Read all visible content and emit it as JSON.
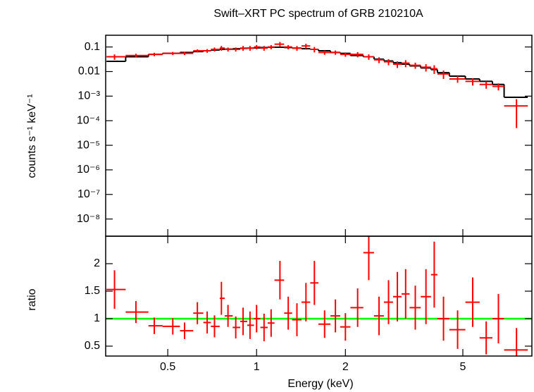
{
  "chart_data": [
    {
      "type": "spectrum",
      "title": "Swift–XRT PC spectrum of GRB 210210A",
      "ylabel": "counts s⁻¹ keV⁻¹",
      "log_x": true,
      "log_y": true,
      "xlim": [
        0.308,
        8.57
      ],
      "ylim": [
        2e-09,
        0.3
      ],
      "yticks": [
        0.1,
        0.01,
        {
          "value": 0.001,
          "label": "10⁻³"
        },
        {
          "value": 0.0001,
          "label": "10⁻⁴"
        },
        {
          "value": 1e-05,
          "label": "10⁻⁵"
        },
        {
          "value": 1e-06,
          "label": "10⁻⁶"
        },
        {
          "value": 1e-07,
          "label": "10⁻⁷"
        },
        {
          "value": 1e-08,
          "label": "10⁻⁸"
        }
      ],
      "data": {
        "color": "#ff0000",
        "x": [
          0.33,
          0.39,
          0.45,
          0.52,
          0.57,
          0.63,
          0.68,
          0.72,
          0.76,
          0.8,
          0.85,
          0.9,
          0.95,
          1.0,
          1.06,
          1.12,
          1.2,
          1.28,
          1.37,
          1.47,
          1.57,
          1.7,
          1.85,
          2.0,
          2.2,
          2.4,
          2.6,
          2.8,
          3.0,
          3.2,
          3.45,
          3.75,
          4.0,
          4.3,
          4.8,
          5.4,
          6.0,
          6.6,
          7.6
        ],
        "x_low": [
          0.31,
          0.36,
          0.43,
          0.48,
          0.55,
          0.61,
          0.66,
          0.7,
          0.75,
          0.78,
          0.83,
          0.88,
          0.93,
          0.98,
          1.03,
          1.09,
          1.15,
          1.24,
          1.32,
          1.42,
          1.52,
          1.62,
          1.78,
          1.92,
          2.08,
          2.3,
          2.5,
          2.7,
          2.9,
          3.1,
          3.3,
          3.6,
          3.9,
          4.1,
          4.5,
          5.1,
          5.7,
          6.3,
          6.9
        ],
        "x_high": [
          0.36,
          0.43,
          0.48,
          0.55,
          0.61,
          0.66,
          0.7,
          0.75,
          0.78,
          0.83,
          0.88,
          0.93,
          0.98,
          1.03,
          1.09,
          1.15,
          1.24,
          1.32,
          1.42,
          1.52,
          1.62,
          1.78,
          1.92,
          2.08,
          2.3,
          2.5,
          2.7,
          2.9,
          3.1,
          3.3,
          3.6,
          3.9,
          4.1,
          4.5,
          5.1,
          5.7,
          6.3,
          6.9,
          8.3
        ],
        "values": [
          0.04,
          0.045,
          0.05,
          0.055,
          0.055,
          0.07,
          0.07,
          0.08,
          0.09,
          0.08,
          0.08,
          0.09,
          0.09,
          0.1,
          0.09,
          0.1,
          0.13,
          0.1,
          0.09,
          0.11,
          0.08,
          0.06,
          0.06,
          0.05,
          0.05,
          0.04,
          0.03,
          0.025,
          0.02,
          0.022,
          0.018,
          0.015,
          0.013,
          0.008,
          0.005,
          0.004,
          0.003,
          0.0025,
          0.0004
        ],
        "errors": [
          0.01,
          0.008,
          0.008,
          0.008,
          0.008,
          0.01,
          0.012,
          0.015,
          0.02,
          0.015,
          0.015,
          0.02,
          0.02,
          0.02,
          0.02,
          0.02,
          0.03,
          0.02,
          0.02,
          0.025,
          0.02,
          0.012,
          0.012,
          0.01,
          0.012,
          0.01,
          0.008,
          0.007,
          0.006,
          0.007,
          0.005,
          0.005,
          0.005,
          0.003,
          0.0015,
          0.0013,
          0.001,
          0.0008,
          0.00035
        ]
      },
      "model": {
        "color": "#000000",
        "bins": [
          0.31,
          0.36,
          0.43,
          0.48,
          0.55,
          0.61,
          0.66,
          0.7,
          0.75,
          0.78,
          0.83,
          0.88,
          0.93,
          0.98,
          1.03,
          1.09,
          1.15,
          1.24,
          1.32,
          1.42,
          1.52,
          1.62,
          1.78,
          1.92,
          2.08,
          2.3,
          2.5,
          2.7,
          2.9,
          3.1,
          3.3,
          3.6,
          3.9,
          4.1,
          4.5,
          5.1,
          5.7,
          6.3,
          6.9,
          8.3
        ],
        "values": [
          0.026,
          0.04,
          0.05,
          0.055,
          0.06,
          0.065,
          0.07,
          0.075,
          0.08,
          0.082,
          0.085,
          0.088,
          0.09,
          0.092,
          0.095,
          0.097,
          0.098,
          0.095,
          0.09,
          0.085,
          0.08,
          0.07,
          0.06,
          0.055,
          0.045,
          0.04,
          0.032,
          0.027,
          0.023,
          0.02,
          0.017,
          0.014,
          0.012,
          0.009,
          0.0065,
          0.005,
          0.004,
          0.003,
          0.0009
        ]
      }
    },
    {
      "type": "ratio",
      "xlabel": "Energy (keV)",
      "ylabel": "ratio",
      "log_x": true,
      "xlim": [
        0.308,
        8.57
      ],
      "xticks": [
        0.5,
        1,
        2,
        5
      ],
      "ylim": [
        0.32,
        2.5
      ],
      "yticks": [
        0.5,
        1,
        1.5,
        2
      ],
      "data": {
        "color": "#ff0000",
        "x": [
          0.33,
          0.39,
          0.45,
          0.52,
          0.57,
          0.63,
          0.68,
          0.72,
          0.76,
          0.8,
          0.85,
          0.9,
          0.95,
          1.0,
          1.06,
          1.12,
          1.2,
          1.28,
          1.37,
          1.47,
          1.57,
          1.7,
          1.85,
          2.0,
          2.2,
          2.4,
          2.6,
          2.8,
          3.0,
          3.2,
          3.45,
          3.75,
          4.0,
          4.3,
          4.8,
          5.4,
          6.0,
          6.6,
          7.6
        ],
        "x_low": [
          0.31,
          0.36,
          0.43,
          0.48,
          0.55,
          0.61,
          0.66,
          0.7,
          0.75,
          0.78,
          0.83,
          0.88,
          0.93,
          0.98,
          1.03,
          1.09,
          1.15,
          1.24,
          1.32,
          1.42,
          1.52,
          1.62,
          1.78,
          1.92,
          2.08,
          2.3,
          2.5,
          2.7,
          2.9,
          3.1,
          3.3,
          3.6,
          3.9,
          4.1,
          4.5,
          5.1,
          5.7,
          6.3,
          6.9
        ],
        "x_high": [
          0.36,
          0.43,
          0.48,
          0.55,
          0.61,
          0.66,
          0.7,
          0.75,
          0.78,
          0.83,
          0.88,
          0.93,
          0.98,
          1.03,
          1.09,
          1.15,
          1.24,
          1.32,
          1.42,
          1.52,
          1.62,
          1.78,
          1.92,
          2.08,
          2.3,
          2.5,
          2.7,
          2.9,
          3.1,
          3.3,
          3.6,
          3.9,
          4.1,
          4.5,
          5.1,
          5.7,
          6.3,
          6.9,
          8.3
        ],
        "values": [
          1.53,
          1.12,
          0.87,
          0.86,
          0.78,
          1.1,
          0.93,
          0.86,
          1.37,
          1.05,
          0.84,
          0.95,
          0.88,
          1.0,
          0.84,
          0.92,
          1.7,
          1.1,
          0.98,
          1.3,
          1.65,
          0.9,
          1.05,
          0.85,
          1.2,
          2.2,
          1.05,
          1.3,
          1.4,
          1.45,
          1.2,
          1.4,
          1.8,
          1.0,
          0.8,
          1.3,
          0.65,
          1.0,
          0.43
        ],
        "errors": [
          0.35,
          0.2,
          0.15,
          0.15,
          0.15,
          0.2,
          0.2,
          0.2,
          0.3,
          0.2,
          0.2,
          0.25,
          0.25,
          0.25,
          0.25,
          0.25,
          0.35,
          0.3,
          0.3,
          0.35,
          0.4,
          0.25,
          0.3,
          0.25,
          0.35,
          0.5,
          0.35,
          0.4,
          0.45,
          0.45,
          0.4,
          0.5,
          0.6,
          0.4,
          0.35,
          0.45,
          0.3,
          0.45,
          0.4
        ]
      },
      "reference": {
        "color": "#00ff00",
        "value": 1
      }
    }
  ]
}
